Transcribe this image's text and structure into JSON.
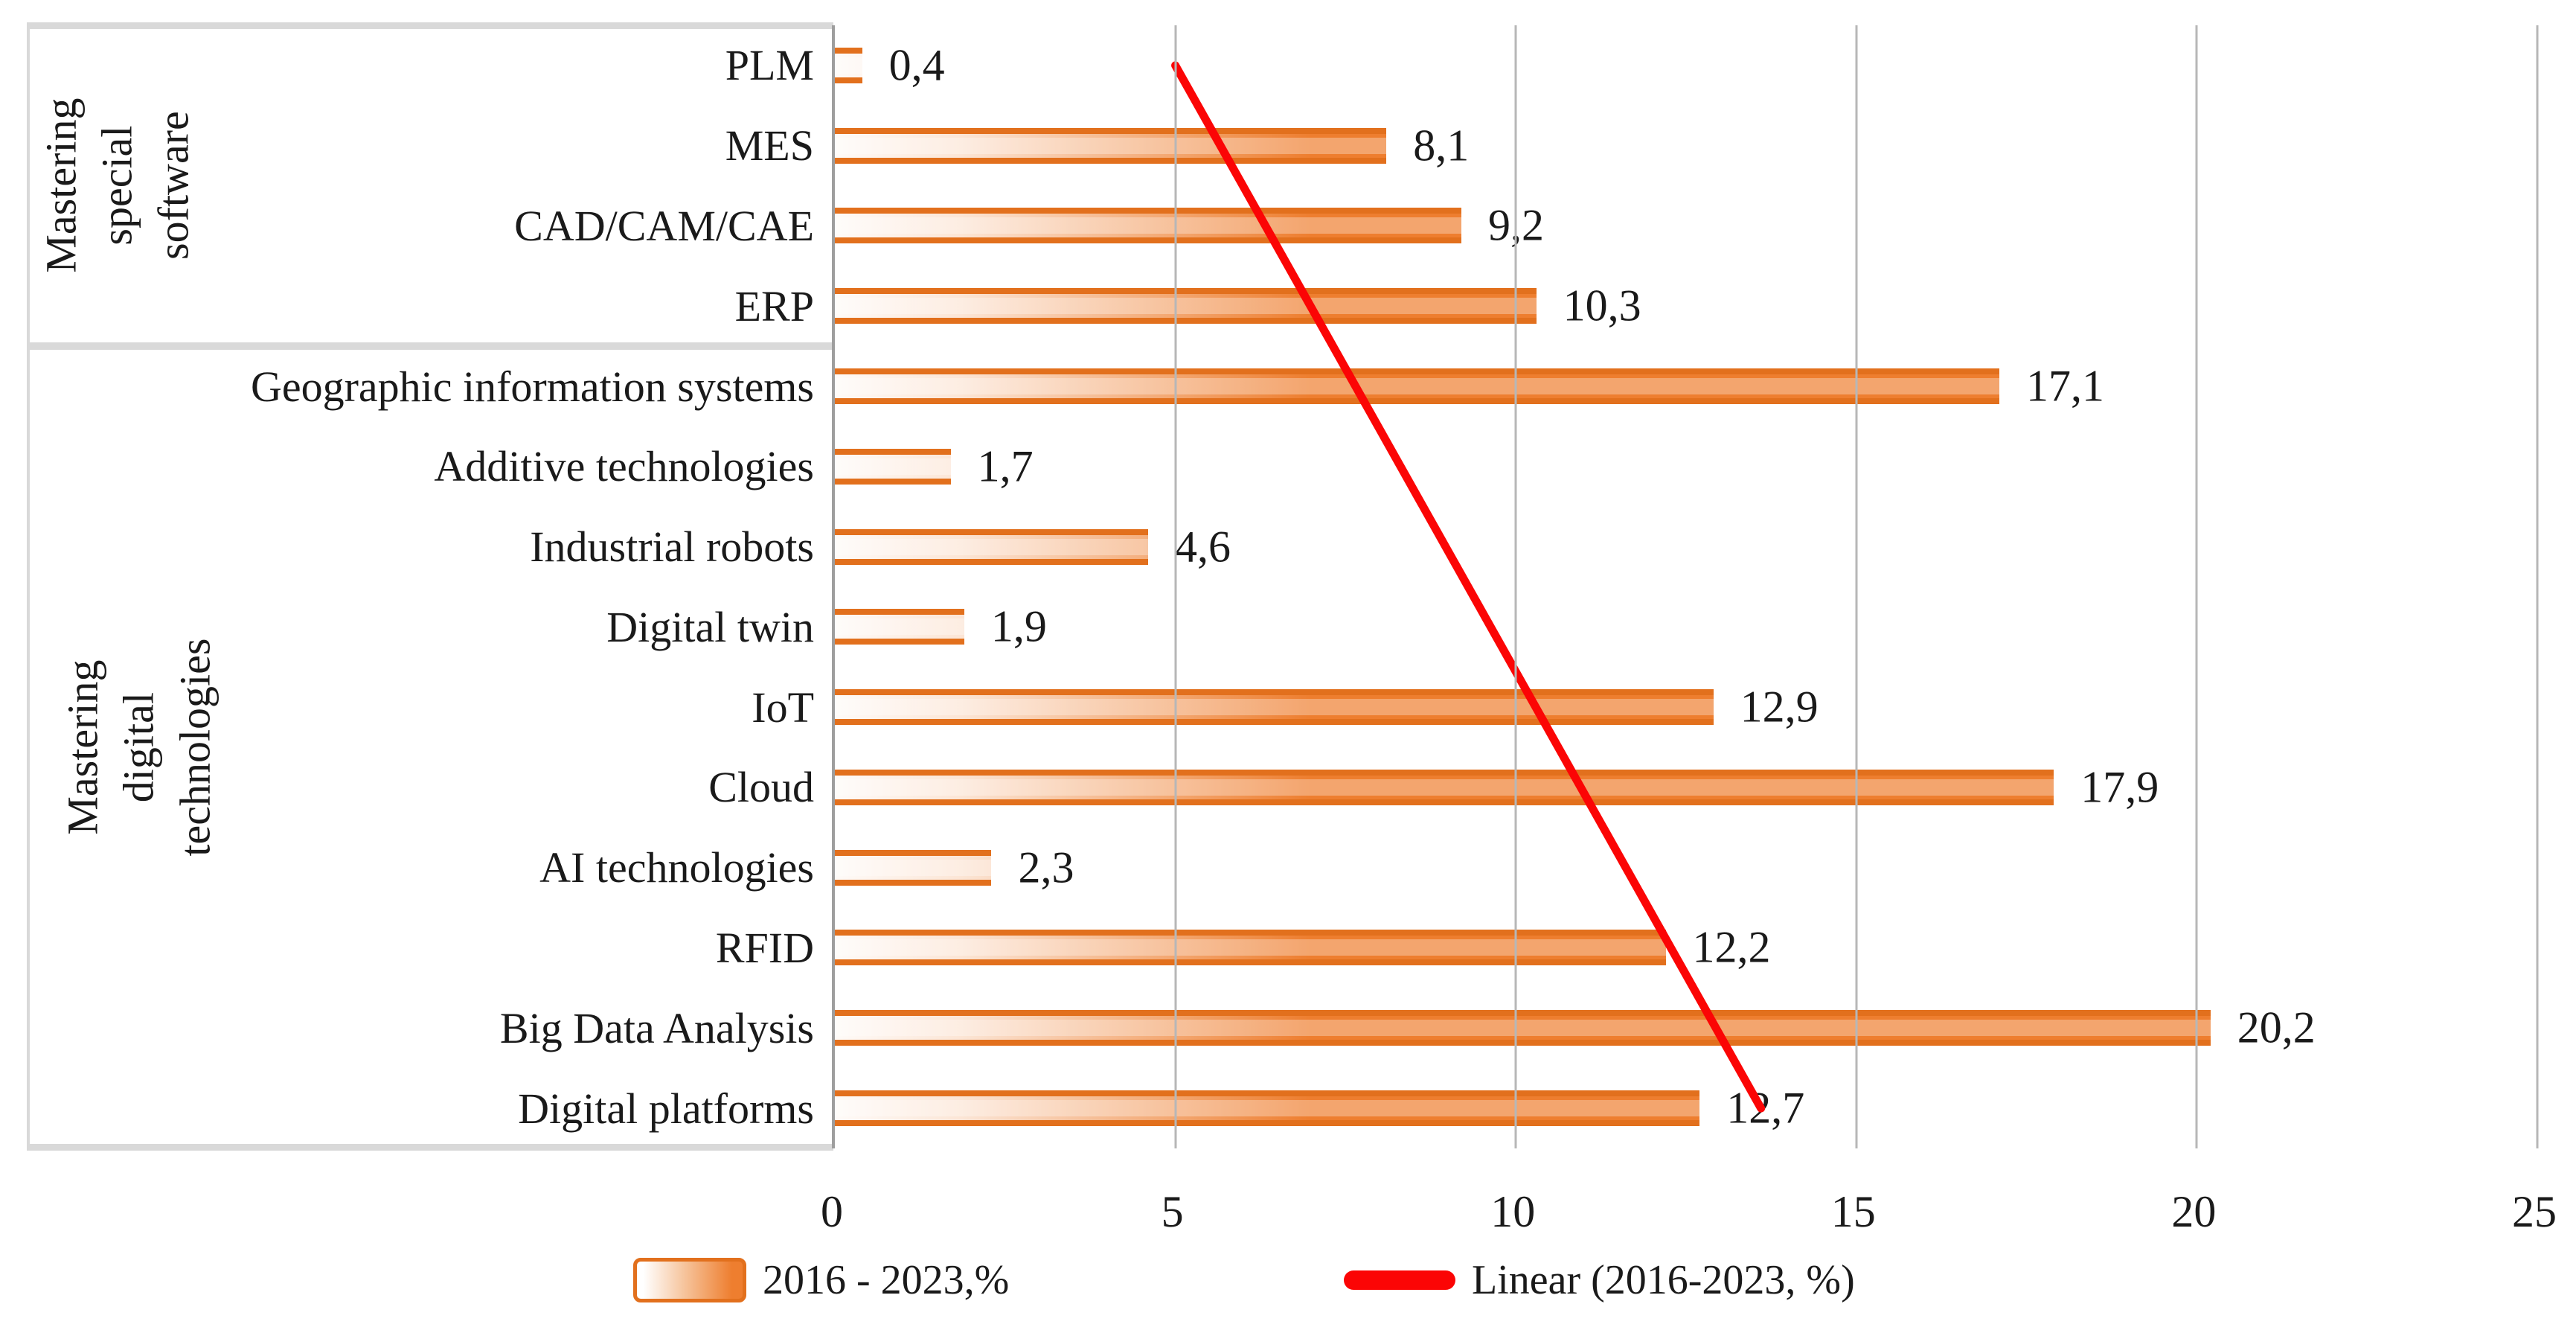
{
  "chart_data": {
    "type": "bar",
    "orientation": "horizontal",
    "title": "",
    "xlabel": "",
    "ylabel": "",
    "xlim": [
      0,
      25
    ],
    "x_ticks": [
      0,
      5,
      10,
      15,
      20,
      25
    ],
    "grid": true,
    "decimal_separator": ",",
    "groups": [
      {
        "label": "Mastering\nspecial software",
        "categories": [
          "PLM",
          "MES",
          "CAD/CAM/CAE",
          "ERP"
        ],
        "values": [
          0.4,
          8.1,
          9.2,
          10.3
        ],
        "value_labels": [
          "0,4",
          "8,1",
          "9,2",
          "10,3"
        ]
      },
      {
        "label": "Mastering digital technologies",
        "categories": [
          "Geographic information systems",
          "Additive technologies",
          "Industrial robots",
          "Digital twin",
          "IoT",
          "Cloud",
          "AI technologies",
          "RFID",
          "Big Data Analysis",
          "Digital platforms"
        ],
        "values": [
          17.1,
          1.7,
          4.6,
          1.9,
          12.9,
          17.9,
          2.3,
          12.2,
          20.2,
          12.7
        ],
        "value_labels": [
          "17,1",
          "1,7",
          "4,6",
          "1,9",
          "12,9",
          "17,9",
          "2,3",
          "12,2",
          "20,2",
          "12,7"
        ]
      }
    ],
    "series_name": "2016 - 2023,%",
    "trendline": {
      "name": "Linear (2016-2023, %)",
      "start_value": 5.0,
      "end_value": 13.6
    },
    "legend": [
      {
        "swatch": "bar-swatch",
        "label": "2016 - 2023,%"
      },
      {
        "swatch": "line-swatch",
        "label": "Linear (2016-2023, %)"
      }
    ],
    "legend_position": "bottom",
    "colors": {
      "bar": "#EE7E2F",
      "bar_edge": "#E2701D",
      "trend_line": "#FB0505",
      "gridline": "#B7B7B7",
      "frame": "#D9D9D9",
      "axis_line": "#9E9E9E",
      "text": "#1A1A1A"
    }
  }
}
